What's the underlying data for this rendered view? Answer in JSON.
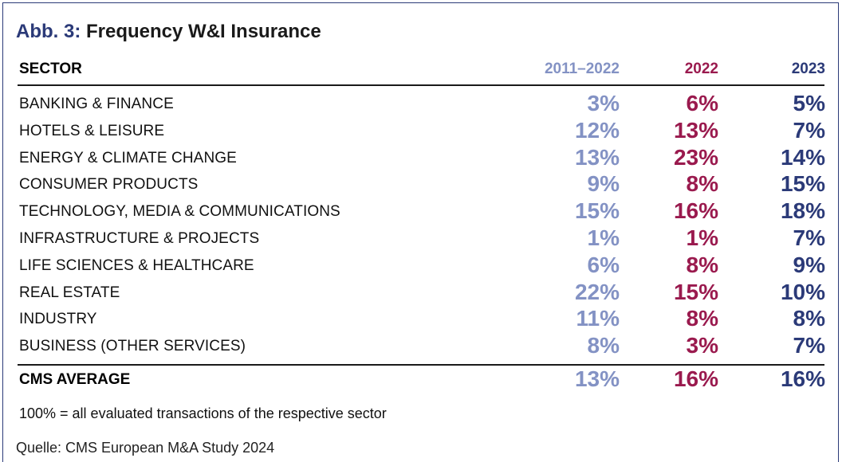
{
  "title": {
    "prefix": "Abb. 3:",
    "text": "Frequency W&I Insurance"
  },
  "chart_data": {
    "type": "table",
    "columns": [
      "SECTOR",
      "2011–2022",
      "2022",
      "2023"
    ],
    "rows": [
      {
        "sector": "BANKING & FINANCE",
        "values": [
          "3%",
          "6%",
          "5%"
        ]
      },
      {
        "sector": "HOTELS & LEISURE",
        "values": [
          "12%",
          "13%",
          "7%"
        ]
      },
      {
        "sector": "ENERGY & CLIMATE CHANGE",
        "values": [
          "13%",
          "23%",
          "14%"
        ]
      },
      {
        "sector": "CONSUMER PRODUCTS",
        "values": [
          "9%",
          "8%",
          "15%"
        ]
      },
      {
        "sector": "TECHNOLOGY, MEDIA & COMMUNICATIONS",
        "values": [
          "15%",
          "16%",
          "18%"
        ]
      },
      {
        "sector": "INFRASTRUCTURE & PROJECTS",
        "values": [
          "1%",
          "1%",
          "7%"
        ]
      },
      {
        "sector": "LIFE SCIENCES & HEALTHCARE",
        "values": [
          "6%",
          "8%",
          "9%"
        ]
      },
      {
        "sector": "REAL ESTATE",
        "values": [
          "22%",
          "15%",
          "10%"
        ]
      },
      {
        "sector": "INDUSTRY",
        "values": [
          "11%",
          "8%",
          "8%"
        ]
      },
      {
        "sector": "BUSINESS (OTHER SERVICES)",
        "values": [
          "8%",
          "3%",
          "7%"
        ]
      }
    ],
    "total": {
      "sector": "CMS AVERAGE",
      "values": [
        "13%",
        "16%",
        "16%"
      ]
    },
    "column_colors": [
      "#8392c4",
      "#9a1a4e",
      "#2b3a78"
    ]
  },
  "footnote": "100% = all evaluated transactions of the respective sector",
  "source": "Quelle: CMS European M&A Study 2024"
}
